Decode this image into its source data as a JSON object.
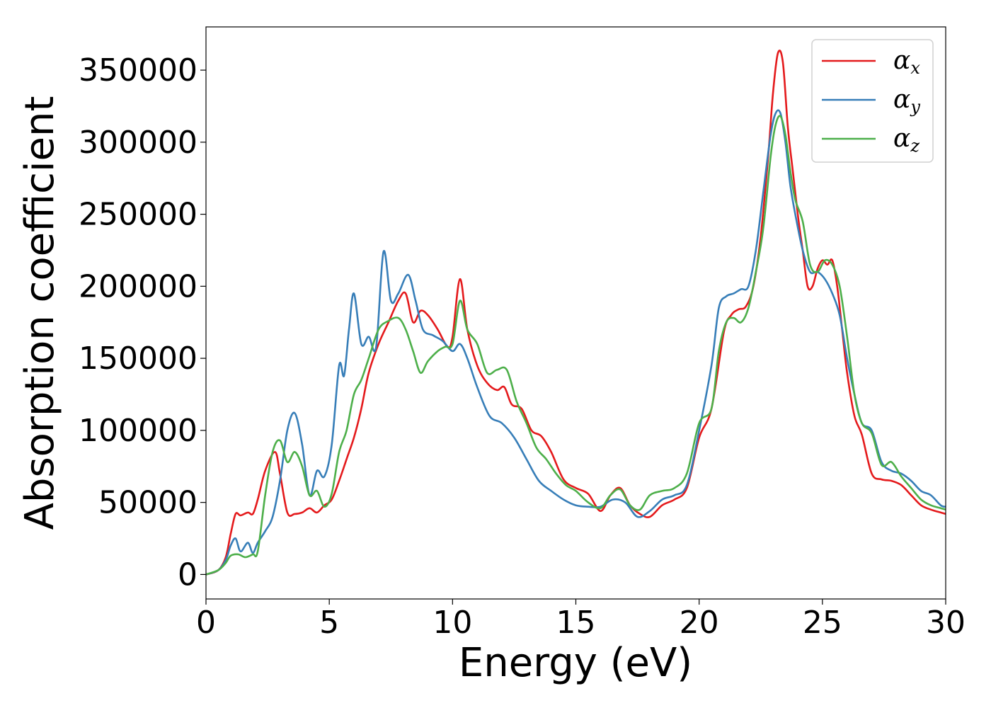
{
  "chart_data": {
    "type": "line",
    "xlabel": "Energy (eV)",
    "ylabel": "Absorption coefficient",
    "xlim": [
      0,
      30
    ],
    "ylim": [
      -17000,
      380000
    ],
    "xticks": [
      0,
      5,
      10,
      15,
      20,
      25,
      30
    ],
    "xtick_labels": [
      "0",
      "5",
      "10",
      "15",
      "20",
      "25",
      "30"
    ],
    "yticks": [
      0,
      50000,
      100000,
      150000,
      200000,
      250000,
      300000,
      350000
    ],
    "ytick_labels": [
      "0",
      "50000",
      "100000",
      "150000",
      "200000",
      "250000",
      "300000",
      "350000"
    ],
    "grid": false,
    "legend_position": "top-right",
    "series": [
      {
        "name": "αx",
        "symbol": "α",
        "subscript": "x",
        "color": "#e41a1c",
        "x": [
          0,
          0.5,
          0.8,
          1.0,
          1.2,
          1.4,
          1.7,
          1.9,
          2.1,
          2.4,
          2.8,
          3.0,
          3.3,
          3.6,
          3.9,
          4.2,
          4.5,
          4.8,
          5.1,
          5.4,
          5.7,
          6.0,
          6.3,
          6.6,
          7.0,
          7.4,
          7.8,
          8.1,
          8.4,
          8.7,
          9.0,
          9.4,
          9.8,
          10.0,
          10.3,
          10.6,
          11.0,
          11.4,
          11.8,
          12.1,
          12.4,
          12.8,
          13.2,
          13.6,
          14.0,
          14.5,
          15.0,
          15.5,
          16.0,
          16.4,
          16.8,
          17.2,
          17.6,
          18.0,
          18.5,
          19.0,
          19.5,
          20.0,
          20.5,
          21.0,
          21.3,
          21.6,
          21.9,
          22.2,
          22.5,
          22.8,
          23.0,
          23.2,
          23.4,
          23.6,
          23.8,
          24.0,
          24.2,
          24.4,
          24.6,
          24.8,
          25.0,
          25.2,
          25.4,
          25.6,
          25.8,
          26.0,
          26.3,
          26.6,
          27.0,
          27.4,
          27.8,
          28.2,
          28.6,
          29.0,
          29.4,
          29.8,
          30.0
        ],
        "y": [
          0,
          3000,
          12000,
          28000,
          42000,
          41000,
          43000,
          42000,
          52000,
          72000,
          85000,
          70000,
          43000,
          42000,
          43000,
          46000,
          43000,
          48000,
          52000,
          65000,
          80000,
          95000,
          115000,
          140000,
          160000,
          175000,
          190000,
          195000,
          175000,
          183000,
          180000,
          170000,
          158000,
          165000,
          205000,
          170000,
          145000,
          133000,
          128000,
          130000,
          118000,
          115000,
          100000,
          96000,
          85000,
          66000,
          60000,
          56000,
          44000,
          55000,
          60000,
          48000,
          42000,
          40000,
          48000,
          52000,
          60000,
          95000,
          115000,
          168000,
          180000,
          184000,
          186000,
          200000,
          235000,
          290000,
          335000,
          362000,
          355000,
          310000,
          280000,
          250000,
          225000,
          200000,
          200000,
          212000,
          218000,
          215000,
          218000,
          200000,
          170000,
          140000,
          110000,
          97000,
          70000,
          66000,
          65000,
          62000,
          55000,
          48000,
          45000,
          43000,
          42000
        ]
      },
      {
        "name": "αy",
        "symbol": "α",
        "subscript": "y",
        "color": "#377eb8",
        "x": [
          0,
          0.5,
          0.8,
          1.0,
          1.2,
          1.4,
          1.7,
          1.9,
          2.1,
          2.4,
          2.7,
          3.0,
          3.3,
          3.6,
          3.9,
          4.2,
          4.5,
          4.8,
          5.1,
          5.4,
          5.6,
          5.8,
          6.0,
          6.3,
          6.6,
          6.9,
          7.2,
          7.5,
          7.8,
          8.2,
          8.5,
          8.8,
          9.2,
          9.6,
          10.0,
          10.3,
          10.6,
          11.0,
          11.5,
          12.0,
          12.5,
          13.0,
          13.5,
          14.0,
          14.5,
          15.0,
          15.5,
          16.0,
          16.5,
          17.0,
          17.5,
          18.0,
          18.5,
          19.0,
          19.5,
          20.0,
          20.5,
          20.8,
          21.1,
          21.4,
          21.7,
          22.0,
          22.3,
          22.6,
          22.9,
          23.1,
          23.3,
          23.5,
          23.7,
          23.9,
          24.2,
          24.5,
          24.8,
          25.1,
          25.4,
          25.7,
          26.0,
          26.3,
          26.6,
          27.0,
          27.4,
          27.8,
          28.2,
          28.6,
          29.0,
          29.4,
          29.8,
          30.0
        ],
        "y": [
          0,
          3000,
          10000,
          20000,
          25000,
          16000,
          22000,
          15000,
          22000,
          30000,
          40000,
          65000,
          100000,
          112000,
          90000,
          55000,
          72000,
          68000,
          90000,
          145000,
          138000,
          170000,
          195000,
          160000,
          165000,
          158000,
          224000,
          190000,
          195000,
          208000,
          190000,
          170000,
          166000,
          162000,
          155000,
          160000,
          150000,
          130000,
          110000,
          105000,
          95000,
          80000,
          65000,
          58000,
          52000,
          48000,
          47000,
          47000,
          52000,
          50000,
          40000,
          44000,
          52000,
          55000,
          62000,
          100000,
          145000,
          185000,
          193000,
          195000,
          198000,
          200000,
          225000,
          265000,
          305000,
          320000,
          320000,
          300000,
          270000,
          250000,
          225000,
          210000,
          210000,
          205000,
          195000,
          180000,
          150000,
          125000,
          105000,
          100000,
          78000,
          72000,
          70000,
          65000,
          58000,
          55000,
          48000,
          47000
        ]
      },
      {
        "name": "αz",
        "symbol": "α",
        "subscript": "z",
        "color": "#4daf4a",
        "x": [
          0,
          0.5,
          0.8,
          1.0,
          1.3,
          1.6,
          1.9,
          2.1,
          2.4,
          2.7,
          3.0,
          3.3,
          3.6,
          3.9,
          4.2,
          4.5,
          4.8,
          5.1,
          5.4,
          5.7,
          6.0,
          6.3,
          6.6,
          7.0,
          7.4,
          7.8,
          8.1,
          8.4,
          8.7,
          9.0,
          9.4,
          9.7,
          10.0,
          10.3,
          10.6,
          11.0,
          11.4,
          11.8,
          12.2,
          12.6,
          13.0,
          13.4,
          13.8,
          14.2,
          14.6,
          15.0,
          15.5,
          16.0,
          16.4,
          16.8,
          17.2,
          17.6,
          18.0,
          18.5,
          19.0,
          19.5,
          20.0,
          20.5,
          20.8,
          21.1,
          21.4,
          21.7,
          22.0,
          22.3,
          22.6,
          22.9,
          23.1,
          23.3,
          23.5,
          23.7,
          23.9,
          24.2,
          24.5,
          24.8,
          25.1,
          25.4,
          25.7,
          26.0,
          26.3,
          26.6,
          27.0,
          27.4,
          27.8,
          28.2,
          28.6,
          29.0,
          29.4,
          29.8,
          30.0
        ],
        "y": [
          0,
          3000,
          8000,
          13000,
          14000,
          12000,
          14000,
          16000,
          55000,
          85000,
          93000,
          78000,
          85000,
          75000,
          55000,
          58000,
          47000,
          56000,
          85000,
          100000,
          125000,
          135000,
          150000,
          170000,
          176000,
          178000,
          170000,
          155000,
          140000,
          148000,
          155000,
          158000,
          160000,
          190000,
          170000,
          160000,
          140000,
          142000,
          142000,
          120000,
          105000,
          88000,
          80000,
          70000,
          62000,
          58000,
          50000,
          46000,
          55000,
          59000,
          48000,
          45000,
          55000,
          58000,
          60000,
          70000,
          105000,
          115000,
          155000,
          175000,
          178000,
          175000,
          185000,
          210000,
          240000,
          290000,
          312000,
          318000,
          305000,
          280000,
          260000,
          245000,
          215000,
          210000,
          218000,
          215000,
          200000,
          165000,
          125000,
          105000,
          98000,
          76000,
          78000,
          68000,
          60000,
          52000,
          48000,
          46000,
          45000
        ]
      }
    ]
  }
}
